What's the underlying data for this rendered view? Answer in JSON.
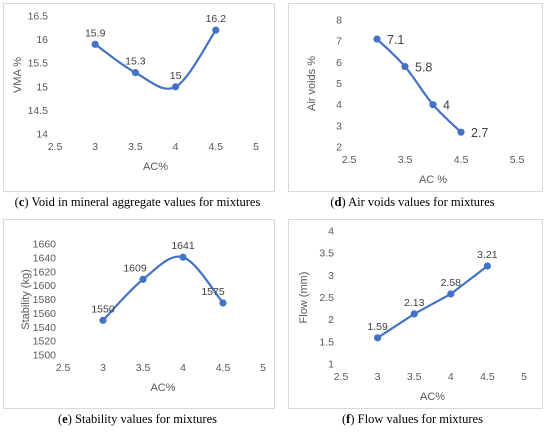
{
  "colors": {
    "series": "#4472C4",
    "axis_text": "#595959",
    "grid": "#d9d9d9",
    "frame": "#d9d9d9"
  },
  "captions": [
    {
      "letter": "c",
      "text": "Void in mineral aggregate values for mixtures"
    },
    {
      "letter": "d",
      "text": "Air voids values for mixtures"
    },
    {
      "letter": "e",
      "text": "Stability values for mixtures"
    },
    {
      "letter": "f",
      "text": "Flow values for mixtures"
    }
  ],
  "chart_data": [
    {
      "type": "line",
      "xlabel": "AC%",
      "ylabel": "VMA %",
      "xlim": [
        2.5,
        5
      ],
      "ylim": [
        14,
        16.5
      ],
      "xticks": [
        "2.5",
        "3",
        "3.5",
        "4",
        "4.5",
        "5"
      ],
      "yticks": [
        "14",
        "14.5",
        "15",
        "15.5",
        "16",
        "16.5"
      ],
      "x": [
        3,
        3.5,
        4,
        4.5
      ],
      "values": [
        15.9,
        15.3,
        15.0,
        16.2
      ],
      "data_labels": [
        "15.9",
        "15.3",
        "15",
        "16.2"
      ],
      "smooth": true,
      "grid": false
    },
    {
      "type": "line",
      "xlabel": "AC %",
      "ylabel": "Air voids %",
      "xlim": [
        2.5,
        5.5
      ],
      "ylim": [
        2,
        8
      ],
      "xticks": [
        "2.5",
        "3.5",
        "4.5",
        "5.5"
      ],
      "yticks": [
        "2",
        "3",
        "4",
        "5",
        "6",
        "7",
        "8"
      ],
      "x": [
        3,
        3.5,
        4,
        4.5
      ],
      "values": [
        7.1,
        5.8,
        4.0,
        2.7
      ],
      "data_labels": [
        "7.1",
        "5.8",
        "4",
        "2.7"
      ],
      "smooth": true,
      "grid": false
    },
    {
      "type": "line",
      "xlabel": "AC%",
      "ylabel": "Stability (kg)",
      "xlim": [
        2.5,
        5
      ],
      "ylim": [
        1500,
        1660
      ],
      "xticks": [
        "2.5",
        "3",
        "3.5",
        "4",
        "4.5",
        "5"
      ],
      "yticks": [
        "1500",
        "1520",
        "1540",
        "1560",
        "1580",
        "1600",
        "1620",
        "1640",
        "1660"
      ],
      "x": [
        3,
        3.5,
        4,
        4.5
      ],
      "values": [
        1550,
        1609,
        1641,
        1575
      ],
      "data_labels": [
        "1550",
        "1609",
        "1641",
        "1575"
      ],
      "smooth": true,
      "grid": false
    },
    {
      "type": "line",
      "xlabel": "AC%",
      "ylabel": "Flow (mm)",
      "xlim": [
        2.5,
        5
      ],
      "ylim": [
        1,
        4
      ],
      "xticks": [
        "2.5",
        "3",
        "3.5",
        "4",
        "4.5",
        "5"
      ],
      "yticks": [
        "1",
        "1.5",
        "2",
        "2.5",
        "3",
        "3.5",
        "4"
      ],
      "x": [
        3,
        3.5,
        4,
        4.5
      ],
      "values": [
        1.59,
        2.13,
        2.58,
        3.21
      ],
      "data_labels": [
        "1.59",
        "2.13",
        "2.58",
        "3.21"
      ],
      "smooth": false,
      "grid": false
    }
  ]
}
